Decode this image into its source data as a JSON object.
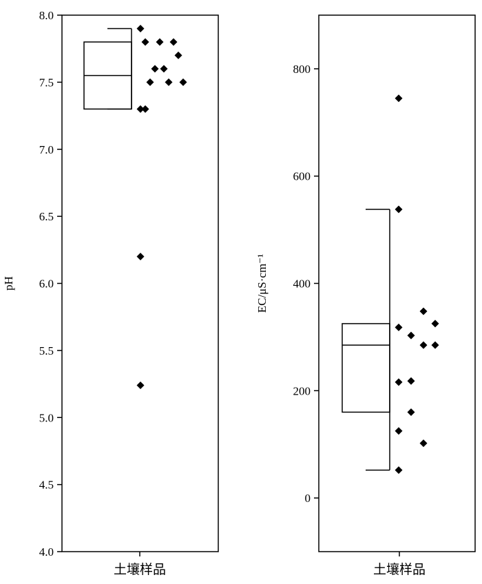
{
  "chart_data": [
    {
      "type": "box",
      "categories": [
        "土壤样品"
      ],
      "ylabel": "pH",
      "ylim": [
        4.0,
        8.0
      ],
      "yticks": [
        4.0,
        4.5,
        5.0,
        5.5,
        6.0,
        6.5,
        7.0,
        7.5,
        8.0
      ],
      "ytick_labels": [
        "4.0",
        "4.5",
        "5.0",
        "5.5",
        "6.0",
        "6.5",
        "7.0",
        "7.5",
        "8.0"
      ],
      "box": {
        "q1": 7.3,
        "median": 7.55,
        "q3": 7.8,
        "whisker_low": 7.3,
        "whisker_high": 7.9
      },
      "points": [
        7.9,
        7.8,
        7.8,
        7.8,
        7.7,
        7.6,
        7.6,
        7.5,
        7.5,
        7.5,
        7.3,
        7.3,
        6.2,
        5.24
      ],
      "grid": false,
      "legend": "none"
    },
    {
      "type": "box",
      "categories": [
        "土壤样品"
      ],
      "ylabel": "EC/μS·cm⁻¹",
      "ylim": [
        -100,
        900
      ],
      "yticks": [
        0,
        200,
        400,
        600,
        800
      ],
      "ytick_labels": [
        "0",
        "200",
        "400",
        "600",
        "800"
      ],
      "box": {
        "q1": 160,
        "median": 285,
        "q3": 325,
        "whisker_low": 52,
        "whisker_high": 538
      },
      "points": [
        745,
        538,
        348,
        325,
        318,
        303,
        285,
        285,
        218,
        216,
        160,
        125,
        102,
        52
      ],
      "grid": false,
      "legend": "none"
    }
  ]
}
